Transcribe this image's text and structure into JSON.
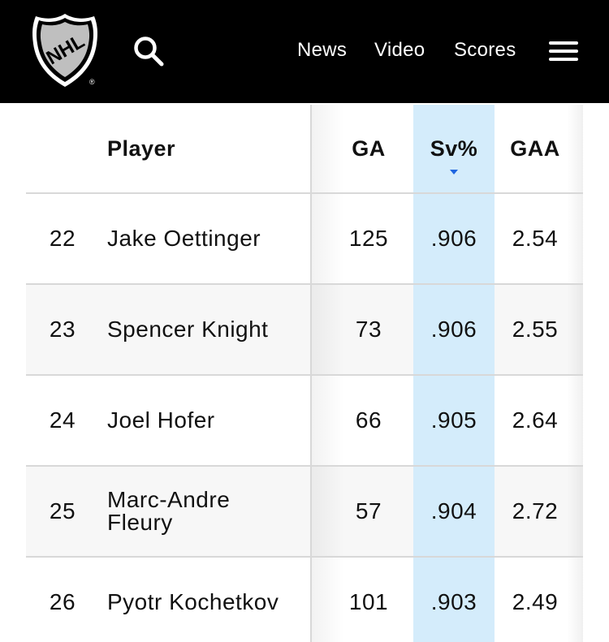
{
  "header": {
    "logo_text": "NHL",
    "nav": [
      "News",
      "Video",
      "Scores"
    ]
  },
  "table": {
    "columns": {
      "rank": "",
      "player": "Player",
      "ga": "GA",
      "sv_pct": "Sv%",
      "gaa": "GAA"
    },
    "sorted_column": "Sv%",
    "rows": [
      {
        "rank": "22",
        "player": "Jake Oettinger",
        "ga": "125",
        "sv_pct": ".906",
        "gaa": "2.54"
      },
      {
        "rank": "23",
        "player": "Spencer Knight",
        "ga": "73",
        "sv_pct": ".906",
        "gaa": "2.55"
      },
      {
        "rank": "24",
        "player": "Joel Hofer",
        "ga": "66",
        "sv_pct": ".905",
        "gaa": "2.64"
      },
      {
        "rank": "25",
        "player": "Marc-Andre Fleury",
        "ga": "57",
        "sv_pct": ".904",
        "gaa": "2.72"
      },
      {
        "rank": "26",
        "player": "Pyotr Kochetkov",
        "ga": "101",
        "sv_pct": ".903",
        "gaa": "2.49"
      }
    ]
  },
  "colors": {
    "topbar": "#000000",
    "sorted_column_bg": "#d4ecfb",
    "sort_indicator": "#1f66e0"
  },
  "icons": [
    "nhl-shield-logo",
    "search-icon",
    "hamburger-menu-icon",
    "sort-descending-icon"
  ]
}
